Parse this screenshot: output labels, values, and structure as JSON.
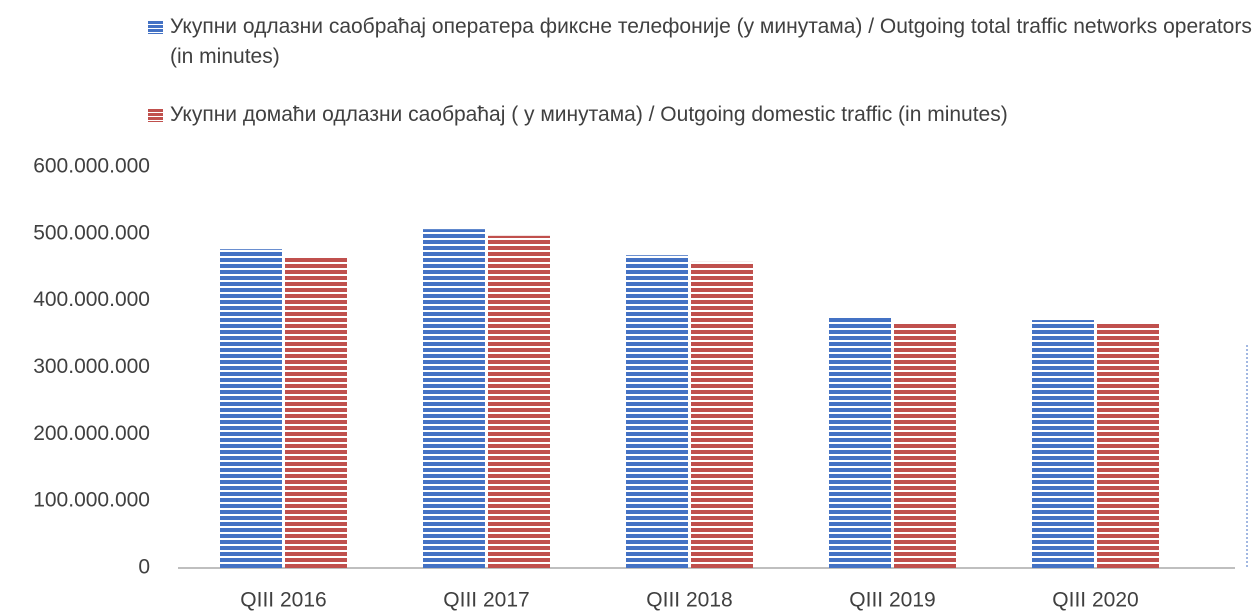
{
  "chart_data": {
    "type": "bar",
    "categories": [
      "QIII 2016",
      "QIII 2017",
      "QIII 2018",
      "QIII 2019",
      "QIII 2020"
    ],
    "series": [
      {
        "name": "Укупни одлазни саобраћај оператера фиксне телефоније (у минутама) / Outgoing total traffic networks operators (in minutes)",
        "color": "#4472c4",
        "values": [
          477000000,
          507000000,
          468000000,
          376000000,
          371000000
        ]
      },
      {
        "name": "Укупни домаћи одлазни саобраћај ( у минутама) / Outgoing domestic traffic (in minutes)",
        "color": "#c0504d",
        "values": [
          465000000,
          497000000,
          458000000,
          368000000,
          368000000
        ]
      }
    ],
    "ylim": [
      0,
      600000000
    ],
    "yticks": [
      0,
      {
        "value": 100000000,
        "label": "100.000.000"
      },
      {
        "value": 200000000,
        "label": "200.000.000"
      },
      {
        "value": 300000000,
        "label": "300.000.000"
      },
      {
        "value": 400000000,
        "label": "400.000.000"
      },
      {
        "value": 500000000,
        "label": "500.000.000"
      },
      {
        "value": 600000000,
        "label": "600.000.000"
      }
    ],
    "grid": false,
    "legend": "top"
  }
}
